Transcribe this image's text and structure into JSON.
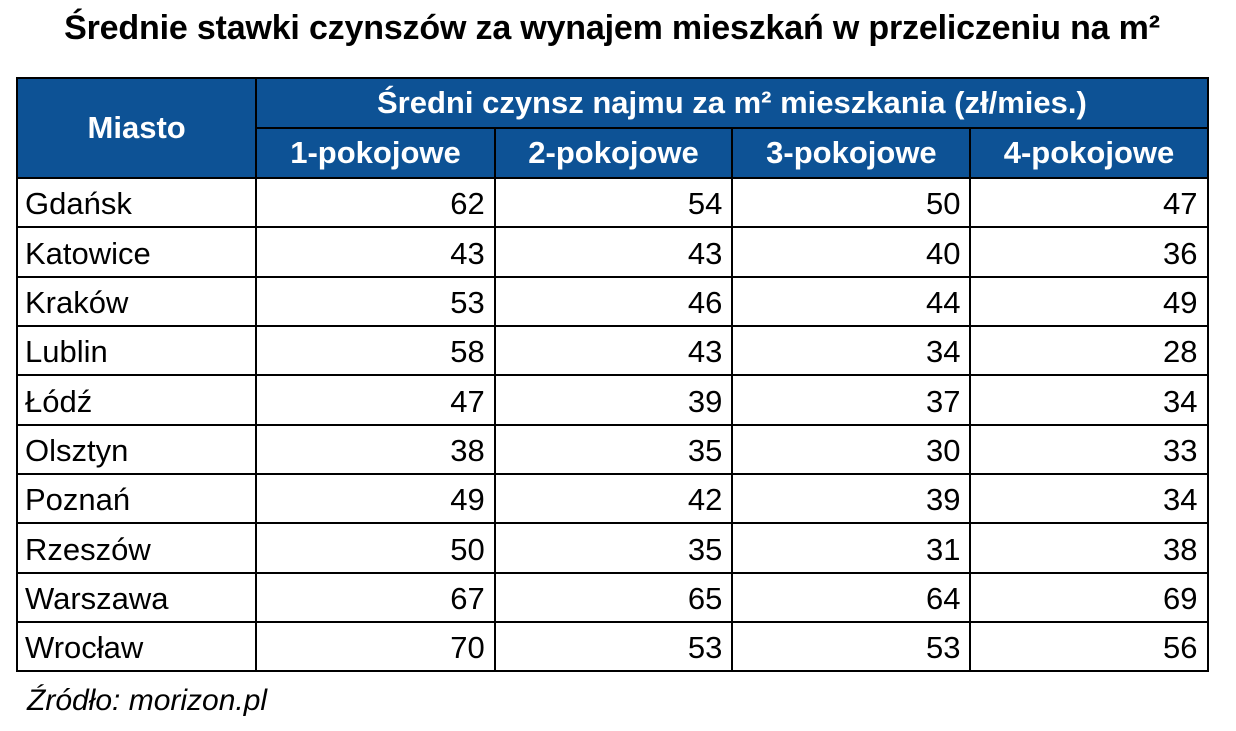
{
  "title": "Średnie stawki czynszów za wynajem mieszkań w przeliczeniu na m²",
  "source": "Źródło: morizon.pl",
  "colors": {
    "header_background": "#0d5295",
    "header_text": "#ffffff",
    "body_text": "#000000",
    "grid_border": "#000000",
    "page_background": "#ffffff"
  },
  "table": {
    "city_header": "Miasto",
    "group_header": "Średni czynsz najmu za m² mieszkania (zł/mies.)",
    "column_headers": [
      "1-pokojowe",
      "2-pokojowe",
      "3-pokojowe",
      "4-pokojowe"
    ],
    "rows": [
      {
        "city": "Gdańsk",
        "values": [
          62,
          54,
          50,
          47
        ]
      },
      {
        "city": "Katowice",
        "values": [
          43,
          43,
          40,
          36
        ]
      },
      {
        "city": "Kraków",
        "values": [
          53,
          46,
          44,
          49
        ]
      },
      {
        "city": "Lublin",
        "values": [
          58,
          43,
          34,
          28
        ]
      },
      {
        "city": "Łódź",
        "values": [
          47,
          39,
          37,
          34
        ]
      },
      {
        "city": "Olsztyn",
        "values": [
          38,
          35,
          30,
          33
        ]
      },
      {
        "city": "Poznań",
        "values": [
          49,
          42,
          39,
          34
        ]
      },
      {
        "city": "Rzeszów",
        "values": [
          50,
          35,
          31,
          38
        ]
      },
      {
        "city": "Warszawa",
        "values": [
          67,
          65,
          64,
          69
        ]
      },
      {
        "city": "Wrocław",
        "values": [
          70,
          53,
          53,
          56
        ]
      }
    ]
  },
  "chart_data": {
    "type": "table",
    "title": "Średnie stawki czynszów za wynajem mieszkań w przeliczeniu na m²",
    "group_header": "Średni czynsz najmu za m² mieszkania (zł/mies.)",
    "columns": [
      "Miasto",
      "1-pokojowe",
      "2-pokojowe",
      "3-pokojowe",
      "4-pokojowe"
    ],
    "rows": [
      [
        "Gdańsk",
        62,
        54,
        50,
        47
      ],
      [
        "Katowice",
        43,
        43,
        40,
        36
      ],
      [
        "Kraków",
        53,
        46,
        44,
        49
      ],
      [
        "Lublin",
        58,
        43,
        34,
        28
      ],
      [
        "Łódź",
        47,
        39,
        37,
        34
      ],
      [
        "Olsztyn",
        38,
        35,
        30,
        33
      ],
      [
        "Poznań",
        49,
        42,
        39,
        34
      ],
      [
        "Rzeszów",
        50,
        35,
        31,
        38
      ],
      [
        "Warszawa",
        67,
        65,
        64,
        69
      ],
      [
        "Wrocław",
        70,
        53,
        53,
        56
      ]
    ],
    "source": "Źródło: morizon.pl",
    "units": "zł/mies. per m²"
  }
}
